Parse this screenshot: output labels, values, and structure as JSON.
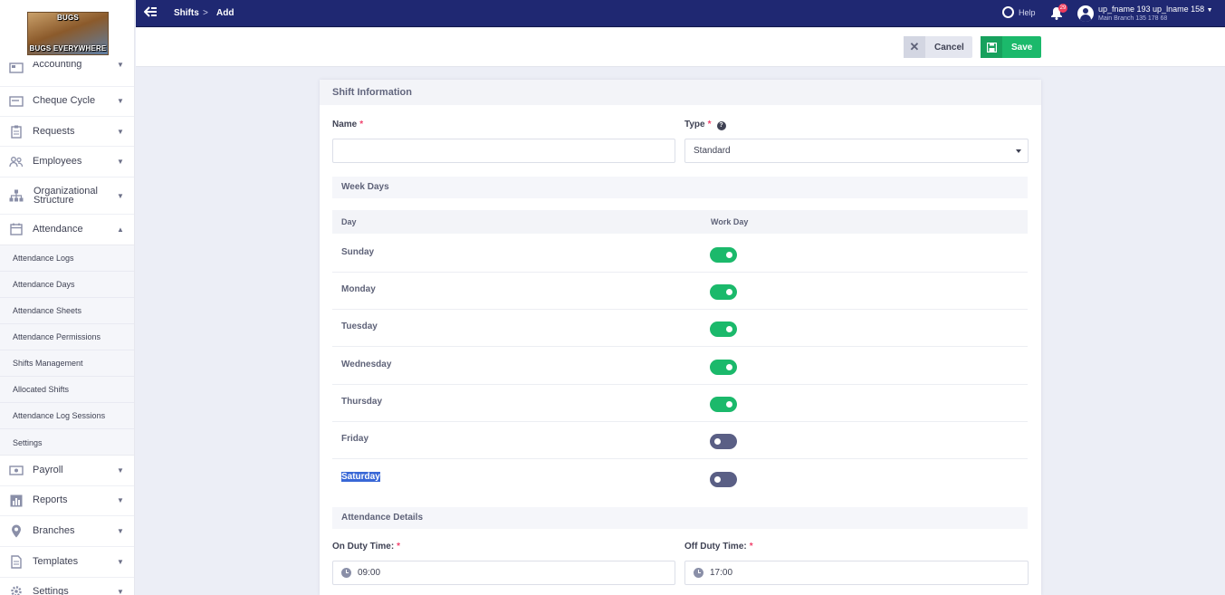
{
  "logo": {
    "top_text": "BUGS",
    "bottom_text": "BUGS EVERYWHERE"
  },
  "sidebar": {
    "items": [
      {
        "label": "Accounting",
        "icon": "accounting-icon"
      },
      {
        "label": "Cheque Cycle",
        "icon": "cheque-icon"
      },
      {
        "label": "Requests",
        "icon": "requests-icon"
      },
      {
        "label": "Employees",
        "icon": "employees-icon"
      },
      {
        "label": "Organizational Structure",
        "icon": "org-structure-icon"
      },
      {
        "label": "Attendance",
        "icon": "calendar-icon",
        "expanded": true
      },
      {
        "label": "Payroll",
        "icon": "payroll-icon"
      },
      {
        "label": "Reports",
        "icon": "reports-icon"
      },
      {
        "label": "Branches",
        "icon": "location-pin-icon"
      },
      {
        "label": "Templates",
        "icon": "templates-icon"
      },
      {
        "label": "Settings",
        "icon": "gear-icon"
      }
    ],
    "attendance_sub": [
      "Attendance Logs",
      "Attendance Days",
      "Attendance Sheets",
      "Attendance Permissions",
      "Shifts Management",
      "Allocated Shifts",
      "Attendance Log Sessions",
      "Settings"
    ]
  },
  "topbar": {
    "breadcrumb": [
      "Shifts",
      "Add"
    ],
    "separator": ">",
    "help_label": "Help",
    "notification_count": "29",
    "user_name": "up_fname 193 up_lname 158",
    "user_branch": "Main Branch 135 178 68",
    "accent": "#1f2872"
  },
  "actions": {
    "cancel_label": "Cancel",
    "save_label": "Save",
    "save_color": "#1bb96b"
  },
  "form": {
    "section_title": "Shift Information",
    "name_label": "Name",
    "name_value": "",
    "type_label": "Type",
    "type_value": "Standard",
    "required_mark": "*",
    "weekdays_title": "Week Days",
    "col_day": "Day",
    "col_workday": "Work Day",
    "days": [
      {
        "name": "Sunday",
        "work_day": true
      },
      {
        "name": "Monday",
        "work_day": true
      },
      {
        "name": "Tuesday",
        "work_day": true
      },
      {
        "name": "Wednesday",
        "work_day": true
      },
      {
        "name": "Thursday",
        "work_day": true
      },
      {
        "name": "Friday",
        "work_day": false
      },
      {
        "name": "Saturday",
        "work_day": false,
        "selected_text": true
      }
    ],
    "attendance_title": "Attendance Details",
    "on_duty_label": "On Duty Time:",
    "on_duty_value": "09:00",
    "off_duty_label": "Off Duty Time:",
    "off_duty_value": "17:00"
  }
}
